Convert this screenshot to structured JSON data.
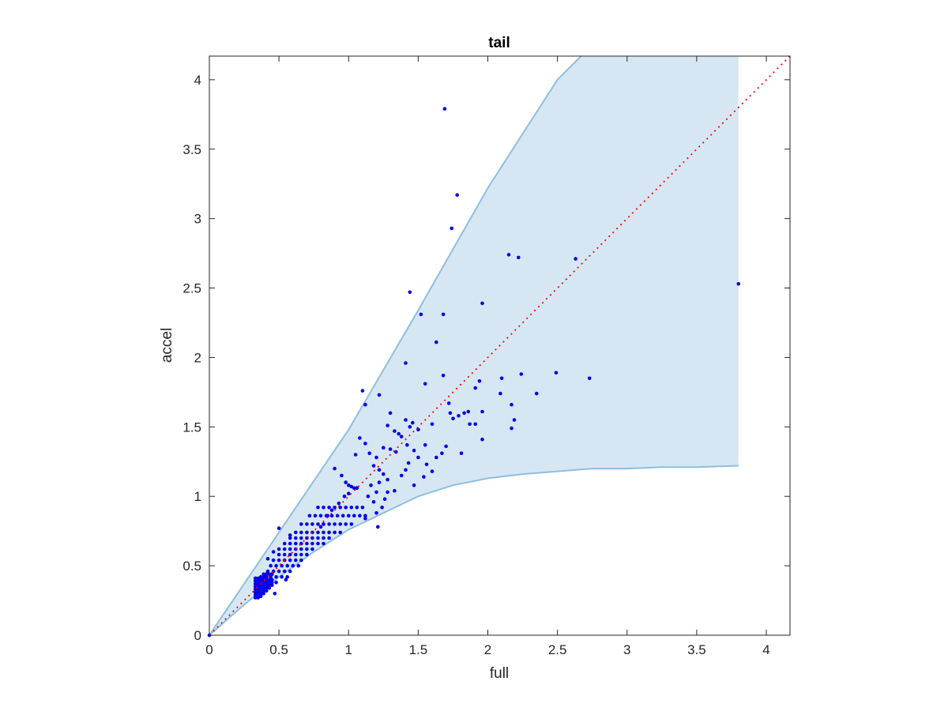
{
  "chart_data": {
    "type": "scatter",
    "title": "tail",
    "xlabel": "full",
    "ylabel": "accel",
    "xlim": [
      0,
      4.17
    ],
    "ylim": [
      0,
      4.17
    ],
    "xticks": [
      0,
      0.5,
      1,
      1.5,
      2,
      2.5,
      3,
      3.5,
      4
    ],
    "yticks": [
      0,
      0.5,
      1,
      1.5,
      2,
      2.5,
      3,
      3.5,
      4
    ],
    "xtick_labels": [
      "0",
      "0.5",
      "1",
      "1.5",
      "2",
      "2.5",
      "3",
      "3.5",
      "4"
    ],
    "ytick_labels": [
      "0",
      "0.5",
      "1",
      "1.5",
      "2",
      "2.5",
      "3",
      "3.5",
      "4"
    ],
    "grid": false,
    "colors": {
      "points": "#0000ee",
      "band_fill": "#d6e7f3",
      "band_edge": "#8dbfe0",
      "reference_line": "#ff0000",
      "axes": "#262626"
    },
    "reference_line": {
      "x": [
        0,
        4.17
      ],
      "y": [
        0,
        4.17
      ],
      "style": "dotted"
    },
    "band": {
      "upper": [
        [
          0,
          0
        ],
        [
          0.5,
          0.74
        ],
        [
          1,
          1.48
        ],
        [
          1.5,
          2.34
        ],
        [
          2,
          3.22
        ],
        [
          2.5,
          4.0
        ],
        [
          2.67,
          4.17
        ],
        [
          3.8,
          4.17
        ]
      ],
      "lower": [
        [
          0,
          0
        ],
        [
          0.25,
          0.22
        ],
        [
          0.5,
          0.42
        ],
        [
          0.75,
          0.6
        ],
        [
          1,
          0.76
        ],
        [
          1.25,
          0.88
        ],
        [
          1.5,
          1.0
        ],
        [
          1.75,
          1.08
        ],
        [
          2,
          1.13
        ],
        [
          2.25,
          1.16
        ],
        [
          2.5,
          1.18
        ],
        [
          2.75,
          1.2
        ],
        [
          3,
          1.2
        ],
        [
          3.25,
          1.21
        ],
        [
          3.5,
          1.21
        ],
        [
          3.8,
          1.22
        ]
      ]
    },
    "series": [
      {
        "points": [
          [
            0,
            0
          ],
          [
            1.69,
            3.79
          ],
          [
            1.78,
            3.17
          ],
          [
            1.74,
            2.93
          ],
          [
            1.44,
            2.47
          ],
          [
            1.52,
            2.31
          ],
          [
            1.68,
            2.31
          ],
          [
            1.63,
            2.11
          ],
          [
            1.41,
            1.96
          ],
          [
            2.15,
            2.74
          ],
          [
            2.22,
            2.72
          ],
          [
            2.63,
            2.71
          ],
          [
            3.8,
            2.53
          ],
          [
            1.96,
            2.39
          ],
          [
            2.49,
            1.89
          ],
          [
            2.24,
            1.88
          ],
          [
            1.68,
            1.87
          ],
          [
            2.1,
            1.85
          ],
          [
            2.73,
            1.85
          ],
          [
            1.94,
            1.83
          ],
          [
            1.55,
            1.81
          ],
          [
            1.91,
            1.78
          ],
          [
            2.35,
            1.74
          ],
          [
            2.09,
            1.74
          ],
          [
            1.1,
            1.76
          ],
          [
            1.22,
            1.73
          ],
          [
            1.12,
            1.66
          ],
          [
            1.86,
            1.61
          ],
          [
            2.17,
            1.66
          ],
          [
            1.72,
            1.67
          ],
          [
            1.83,
            1.6
          ],
          [
            1.96,
            1.61
          ],
          [
            2.19,
            1.55
          ],
          [
            1.87,
            1.52
          ],
          [
            1.6,
            1.52
          ],
          [
            1.73,
            1.6
          ],
          [
            1.75,
            1.56
          ],
          [
            1.79,
            1.58
          ],
          [
            1.91,
            1.52
          ],
          [
            2.17,
            1.49
          ],
          [
            1.96,
            1.41
          ],
          [
            1.81,
            1.31
          ],
          [
            1.67,
            1.31
          ],
          [
            1.7,
            1.36
          ],
          [
            1.56,
            1.23
          ],
          [
            1.6,
            1.18
          ],
          [
            1.54,
            1.14
          ],
          [
            1.63,
            1.28
          ],
          [
            1.3,
            1.6
          ],
          [
            1.41,
            1.55
          ],
          [
            1.44,
            1.5
          ],
          [
            1.28,
            1.51
          ],
          [
            1.33,
            1.47
          ],
          [
            1.36,
            1.45
          ],
          [
            1.46,
            1.53
          ],
          [
            1.5,
            1.48
          ],
          [
            1.38,
            1.43
          ],
          [
            1.25,
            1.35
          ],
          [
            1.3,
            1.34
          ],
          [
            1.34,
            1.32
          ],
          [
            1.42,
            1.37
          ],
          [
            1.47,
            1.33
          ],
          [
            1.55,
            1.37
          ],
          [
            1.5,
            1.28
          ],
          [
            1.43,
            1.24
          ],
          [
            1.41,
            1.19
          ],
          [
            1.38,
            1.15
          ],
          [
            1.47,
            1.08
          ],
          [
            1.33,
            1.04
          ],
          [
            1.28,
            1.03
          ],
          [
            1.26,
            0.98
          ],
          [
            1.08,
            1.42
          ],
          [
            1.12,
            1.38
          ],
          [
            1.15,
            1.31
          ],
          [
            1.2,
            1.28
          ],
          [
            1.05,
            1.3
          ],
          [
            1.18,
            1.22
          ],
          [
            1.22,
            1.19
          ],
          [
            1.25,
            1.16
          ],
          [
            1.28,
            1.12
          ],
          [
            1.22,
            1.1
          ],
          [
            1.16,
            1.08
          ],
          [
            1.2,
            1.03
          ],
          [
            1.14,
            1.0
          ],
          [
            1.18,
            0.96
          ],
          [
            1.24,
            0.92
          ],
          [
            1.2,
            0.88
          ],
          [
            1.12,
            0.84
          ],
          [
            1.21,
            0.78
          ],
          [
            0.9,
            1.2
          ],
          [
            0.95,
            1.15
          ],
          [
            0.98,
            1.1
          ],
          [
            1.0,
            1.08
          ],
          [
            1.02,
            1.07
          ],
          [
            1.04,
            1.06
          ],
          [
            1.06,
            1.06
          ],
          [
            1.0,
            1.02
          ],
          [
            0.97,
            1.0
          ],
          [
            0.93,
            0.95
          ],
          [
            0.88,
            0.9
          ],
          [
            0.85,
            0.86
          ],
          [
            0.82,
            0.8
          ],
          [
            0.8,
            0.78
          ],
          [
            0.78,
            0.92
          ],
          [
            0.82,
            0.92
          ],
          [
            0.86,
            0.92
          ],
          [
            0.9,
            0.92
          ],
          [
            0.94,
            0.92
          ],
          [
            0.98,
            0.92
          ],
          [
            1.02,
            0.92
          ],
          [
            1.06,
            0.92
          ],
          [
            1.1,
            0.92
          ],
          [
            0.72,
            0.86
          ],
          [
            0.76,
            0.86
          ],
          [
            0.8,
            0.86
          ],
          [
            0.84,
            0.86
          ],
          [
            0.88,
            0.86
          ],
          [
            0.92,
            0.86
          ],
          [
            0.96,
            0.86
          ],
          [
            1.0,
            0.86
          ],
          [
            1.04,
            0.86
          ],
          [
            1.08,
            0.86
          ],
          [
            1.12,
            0.86
          ],
          [
            0.66,
            0.8
          ],
          [
            0.7,
            0.8
          ],
          [
            0.74,
            0.8
          ],
          [
            0.78,
            0.8
          ],
          [
            0.82,
            0.8
          ],
          [
            0.86,
            0.8
          ],
          [
            0.9,
            0.8
          ],
          [
            0.94,
            0.8
          ],
          [
            0.98,
            0.8
          ],
          [
            1.02,
            0.8
          ],
          [
            0.62,
            0.74
          ],
          [
            0.66,
            0.74
          ],
          [
            0.7,
            0.74
          ],
          [
            0.74,
            0.74
          ],
          [
            0.78,
            0.74
          ],
          [
            0.82,
            0.74
          ],
          [
            0.86,
            0.74
          ],
          [
            0.9,
            0.74
          ],
          [
            0.94,
            0.74
          ],
          [
            0.58,
            0.7
          ],
          [
            0.62,
            0.7
          ],
          [
            0.66,
            0.7
          ],
          [
            0.7,
            0.7
          ],
          [
            0.74,
            0.7
          ],
          [
            0.78,
            0.7
          ],
          [
            0.82,
            0.7
          ],
          [
            0.86,
            0.7
          ],
          [
            0.54,
            0.66
          ],
          [
            0.58,
            0.66
          ],
          [
            0.62,
            0.66
          ],
          [
            0.66,
            0.66
          ],
          [
            0.7,
            0.66
          ],
          [
            0.74,
            0.66
          ],
          [
            0.78,
            0.66
          ],
          [
            0.82,
            0.66
          ],
          [
            0.5,
            0.62
          ],
          [
            0.54,
            0.62
          ],
          [
            0.58,
            0.62
          ],
          [
            0.62,
            0.62
          ],
          [
            0.66,
            0.62
          ],
          [
            0.7,
            0.62
          ],
          [
            0.74,
            0.62
          ],
          [
            0.5,
            0.58
          ],
          [
            0.54,
            0.58
          ],
          [
            0.58,
            0.58
          ],
          [
            0.62,
            0.58
          ],
          [
            0.66,
            0.58
          ],
          [
            0.7,
            0.58
          ],
          [
            0.46,
            0.54
          ],
          [
            0.5,
            0.54
          ],
          [
            0.54,
            0.54
          ],
          [
            0.58,
            0.54
          ],
          [
            0.62,
            0.54
          ],
          [
            0.66,
            0.54
          ],
          [
            0.44,
            0.5
          ],
          [
            0.48,
            0.5
          ],
          [
            0.52,
            0.5
          ],
          [
            0.56,
            0.5
          ],
          [
            0.6,
            0.5
          ],
          [
            0.64,
            0.5
          ],
          [
            0.42,
            0.46
          ],
          [
            0.46,
            0.46
          ],
          [
            0.5,
            0.46
          ],
          [
            0.54,
            0.46
          ],
          [
            0.58,
            0.46
          ],
          [
            0.4,
            0.42
          ],
          [
            0.44,
            0.42
          ],
          [
            0.48,
            0.42
          ],
          [
            0.52,
            0.42
          ],
          [
            0.56,
            0.42
          ],
          [
            0.5,
            0.77
          ],
          [
            0.58,
            0.72
          ],
          [
            0.46,
            0.6
          ],
          [
            0.42,
            0.55
          ],
          [
            0.48,
            0.38
          ],
          [
            0.55,
            0.4
          ],
          [
            0.47,
            0.3
          ],
          [
            0.33,
            0.27
          ],
          [
            0.33,
            0.29
          ],
          [
            0.33,
            0.31
          ],
          [
            0.33,
            0.33
          ],
          [
            0.33,
            0.35
          ],
          [
            0.33,
            0.37
          ],
          [
            0.33,
            0.39
          ],
          [
            0.33,
            0.41
          ],
          [
            0.35,
            0.27
          ],
          [
            0.35,
            0.29
          ],
          [
            0.35,
            0.31
          ],
          [
            0.35,
            0.33
          ],
          [
            0.35,
            0.35
          ],
          [
            0.35,
            0.37
          ],
          [
            0.35,
            0.39
          ],
          [
            0.35,
            0.41
          ],
          [
            0.37,
            0.28
          ],
          [
            0.37,
            0.3
          ],
          [
            0.37,
            0.32
          ],
          [
            0.37,
            0.34
          ],
          [
            0.37,
            0.36
          ],
          [
            0.37,
            0.38
          ],
          [
            0.37,
            0.4
          ],
          [
            0.37,
            0.42
          ],
          [
            0.39,
            0.3
          ],
          [
            0.39,
            0.32
          ],
          [
            0.39,
            0.34
          ],
          [
            0.39,
            0.36
          ],
          [
            0.39,
            0.38
          ],
          [
            0.39,
            0.4
          ],
          [
            0.39,
            0.42
          ],
          [
            0.39,
            0.44
          ],
          [
            0.41,
            0.32
          ],
          [
            0.41,
            0.34
          ],
          [
            0.41,
            0.36
          ],
          [
            0.41,
            0.38
          ],
          [
            0.41,
            0.4
          ],
          [
            0.41,
            0.42
          ],
          [
            0.41,
            0.44
          ],
          [
            0.43,
            0.34
          ],
          [
            0.43,
            0.36
          ],
          [
            0.43,
            0.38
          ],
          [
            0.43,
            0.4
          ],
          [
            0.43,
            0.44
          ],
          [
            0.45,
            0.36
          ],
          [
            0.45,
            0.38
          ],
          [
            0.45,
            0.4
          ],
          [
            0.45,
            0.44
          ]
        ]
      }
    ]
  }
}
